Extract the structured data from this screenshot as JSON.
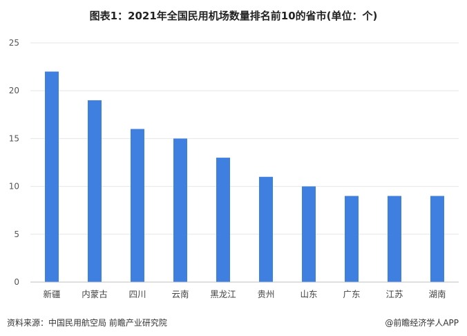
{
  "page": {
    "source": "资料来源：中国民用航空局 前瞻产业研究院",
    "brand": "@前瞻经济学人APP"
  },
  "chart_data": {
    "type": "bar",
    "title": "图表1：2021年全国民用机场数量排名前10的省市(单位：个)",
    "xlabel": "",
    "ylabel": "",
    "categories": [
      "新疆",
      "内蒙古",
      "四川",
      "云南",
      "黑龙江",
      "贵州",
      "山东",
      "广东",
      "江苏",
      "湖南"
    ],
    "series": [
      {
        "values": [
          22,
          19,
          16,
          15,
          13,
          11,
          10,
          9,
          9,
          9
        ]
      }
    ],
    "ylim": [
      0,
      25
    ],
    "yticks": [
      0,
      5,
      10,
      15,
      20,
      25
    ],
    "grid": true,
    "legend": "none",
    "colors": {
      "bar": "#3f7fdf",
      "grid": "#e6e6e6",
      "axis": "#bfbfbf"
    }
  }
}
